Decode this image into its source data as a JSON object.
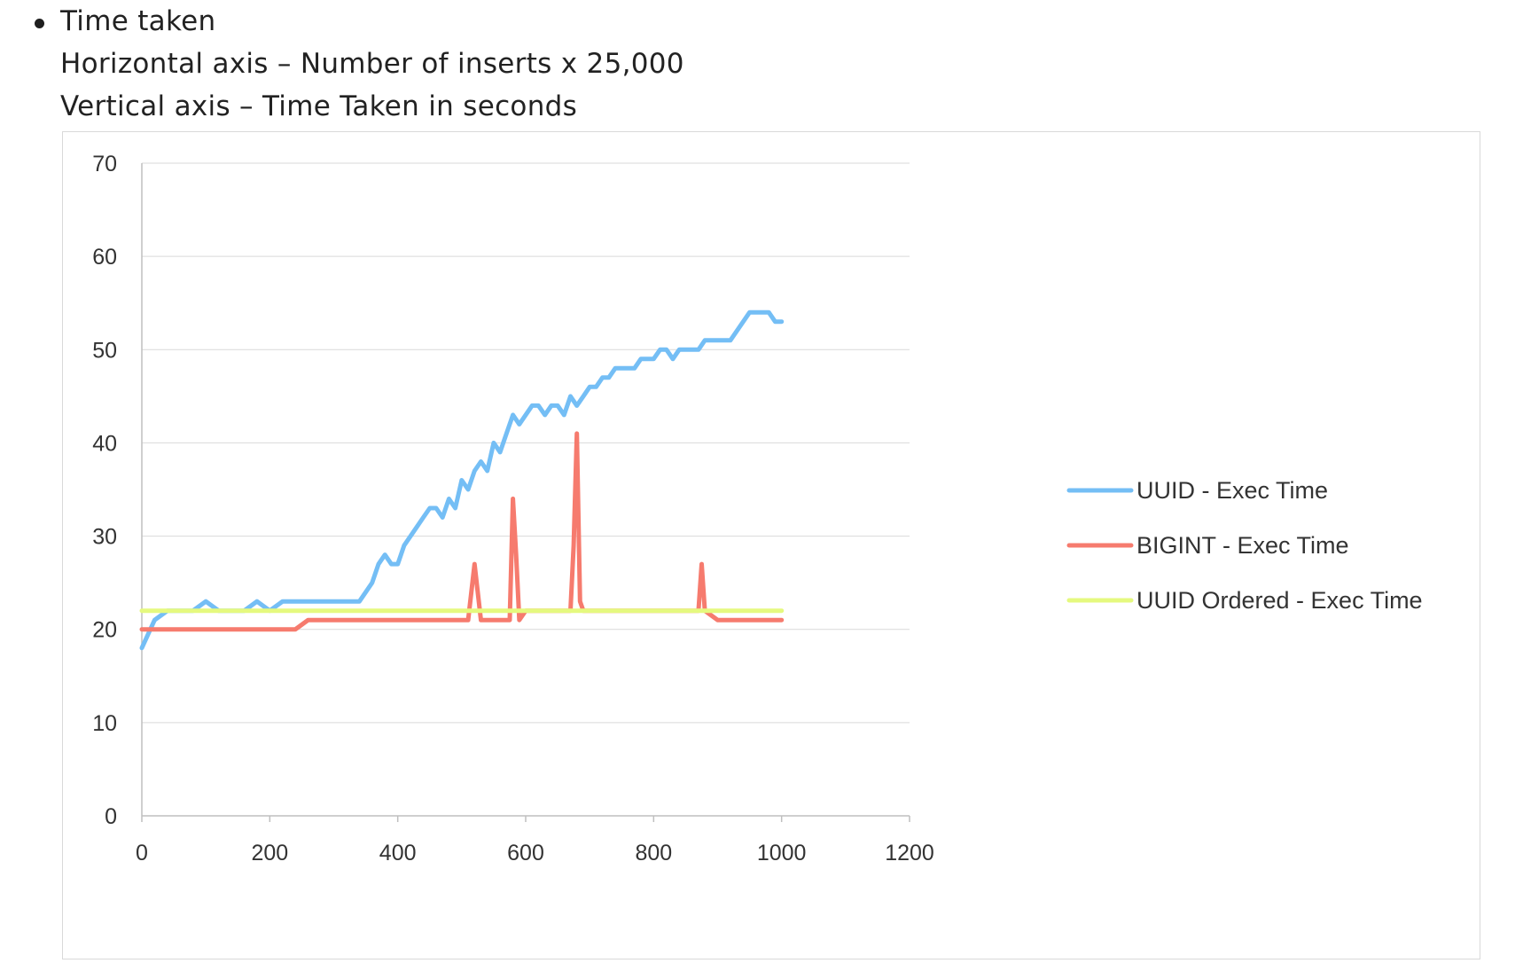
{
  "bullet": {
    "heading": "Time taken",
    "line_x": "Horizontal axis – Number of inserts x 25,000",
    "line_y": "Vertical axis – Time Taken in seconds"
  },
  "chart_data": {
    "type": "line",
    "title": "",
    "xlabel": "",
    "ylabel": "",
    "xlim": [
      0,
      1200
    ],
    "ylim": [
      0,
      70
    ],
    "x_ticks": [
      0,
      200,
      400,
      600,
      800,
      1000,
      1200
    ],
    "y_ticks": [
      0,
      10,
      20,
      30,
      40,
      50,
      60,
      70
    ],
    "grid": "horizontal",
    "legend_position": "right",
    "series": [
      {
        "name": "UUID - Exec Time",
        "color": "#74BEF5",
        "x": [
          0,
          20,
          40,
          60,
          80,
          100,
          120,
          140,
          160,
          180,
          200,
          220,
          240,
          260,
          280,
          300,
          320,
          340,
          350,
          360,
          370,
          380,
          390,
          400,
          410,
          420,
          430,
          440,
          450,
          460,
          470,
          480,
          490,
          500,
          510,
          520,
          530,
          540,
          550,
          560,
          570,
          580,
          590,
          600,
          610,
          620,
          630,
          640,
          650,
          660,
          670,
          680,
          690,
          700,
          710,
          720,
          730,
          740,
          750,
          760,
          770,
          780,
          790,
          800,
          810,
          820,
          830,
          840,
          850,
          860,
          870,
          880,
          890,
          900,
          910,
          920,
          930,
          940,
          950,
          960,
          970,
          980,
          990,
          1000
        ],
        "values": [
          18,
          21,
          22,
          22,
          22,
          23,
          22,
          22,
          22,
          23,
          22,
          23,
          23,
          23,
          23,
          23,
          23,
          23,
          24,
          25,
          27,
          28,
          27,
          27,
          29,
          30,
          31,
          32,
          33,
          33,
          32,
          34,
          33,
          36,
          35,
          37,
          38,
          37,
          40,
          39,
          41,
          43,
          42,
          43,
          44,
          44,
          43,
          44,
          44,
          43,
          45,
          44,
          45,
          46,
          46,
          47,
          47,
          48,
          48,
          48,
          48,
          49,
          49,
          49,
          50,
          50,
          49,
          50,
          50,
          50,
          50,
          51,
          51,
          51,
          51,
          51,
          52,
          53,
          54,
          54,
          54,
          54,
          53,
          53
        ]
      },
      {
        "name": "BIGINT - Exec Time",
        "color": "#F67B6E",
        "x": [
          0,
          20,
          40,
          60,
          80,
          100,
          120,
          140,
          160,
          180,
          200,
          220,
          240,
          260,
          280,
          300,
          320,
          340,
          360,
          380,
          400,
          420,
          440,
          460,
          480,
          500,
          510,
          520,
          530,
          540,
          560,
          575,
          580,
          585,
          590,
          600,
          620,
          640,
          660,
          670,
          675,
          680,
          685,
          690,
          700,
          720,
          740,
          760,
          780,
          800,
          820,
          840,
          860,
          870,
          875,
          880,
          900,
          920,
          940,
          960,
          980,
          1000
        ],
        "values": [
          20,
          20,
          20,
          20,
          20,
          20,
          20,
          20,
          20,
          20,
          20,
          20,
          20,
          21,
          21,
          21,
          21,
          21,
          21,
          21,
          21,
          21,
          21,
          21,
          21,
          21,
          21,
          27,
          21,
          21,
          21,
          21,
          34,
          28,
          21,
          22,
          22,
          22,
          22,
          22,
          29,
          41,
          23,
          22,
          22,
          22,
          22,
          22,
          22,
          22,
          22,
          22,
          22,
          22,
          27,
          22,
          21,
          21,
          21,
          21,
          21,
          21
        ]
      },
      {
        "name": "UUID Ordered - Exec Time",
        "color": "#E5F97F",
        "x": [
          0,
          20,
          40,
          60,
          80,
          100,
          120,
          140,
          160,
          180,
          200,
          220,
          240,
          260,
          280,
          300,
          320,
          340,
          360,
          380,
          400,
          420,
          440,
          460,
          480,
          500,
          520,
          540,
          560,
          580,
          600,
          620,
          640,
          660,
          680,
          700,
          720,
          740,
          760,
          780,
          800,
          820,
          840,
          860,
          880,
          900,
          920,
          940,
          960,
          980,
          1000
        ],
        "values": [
          22,
          22,
          22,
          22,
          22,
          22,
          22,
          22,
          22,
          22,
          22,
          22,
          22,
          22,
          22,
          22,
          22,
          22,
          22,
          22,
          22,
          22,
          22,
          22,
          22,
          22,
          22,
          22,
          22,
          22,
          22,
          22,
          22,
          22,
          22,
          22,
          22,
          22,
          22,
          22,
          22,
          22,
          22,
          22,
          22,
          22,
          22,
          22,
          22,
          22,
          22
        ]
      }
    ]
  }
}
